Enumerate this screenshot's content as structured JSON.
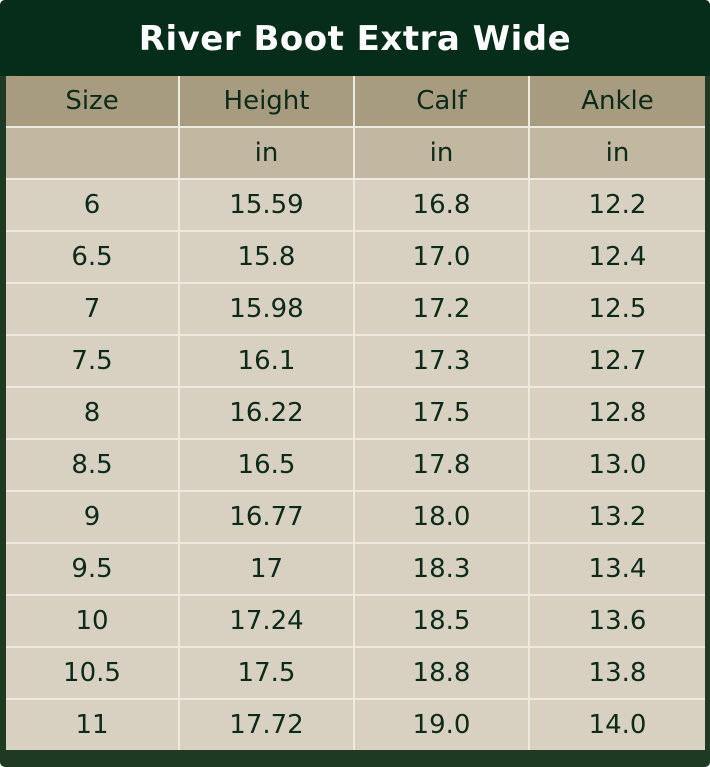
{
  "title": "River Boot Extra Wide",
  "columns": [
    "Size",
    "Height",
    "Calf",
    "Ankle"
  ],
  "units": [
    "",
    "in",
    "in",
    "in"
  ],
  "rows": [
    [
      "6",
      "15.59",
      "16.8",
      "12.2"
    ],
    [
      "6.5",
      "15.8",
      "17.0",
      "12.4"
    ],
    [
      "7",
      "15.98",
      "17.2",
      "12.5"
    ],
    [
      "7.5",
      "16.1",
      "17.3",
      "12.7"
    ],
    [
      "8",
      "16.22",
      "17.5",
      "12.8"
    ],
    [
      "8.5",
      "16.5",
      "17.8",
      "13.0"
    ],
    [
      "9",
      "16.77",
      "18.0",
      "13.2"
    ],
    [
      "9.5",
      "17",
      "18.3",
      "13.4"
    ],
    [
      "10",
      "17.24",
      "18.5",
      "13.6"
    ],
    [
      "10.5",
      "17.5",
      "18.8",
      "13.8"
    ],
    [
      "11",
      "17.72",
      "19.0",
      "14.0"
    ]
  ],
  "colors": {
    "title_bg": "#062d1a",
    "header_bg": "#a79c80",
    "unit_bg": "#c2b8a2",
    "cell_bg": "#d8d1c2",
    "text": "#0b2a1a"
  }
}
